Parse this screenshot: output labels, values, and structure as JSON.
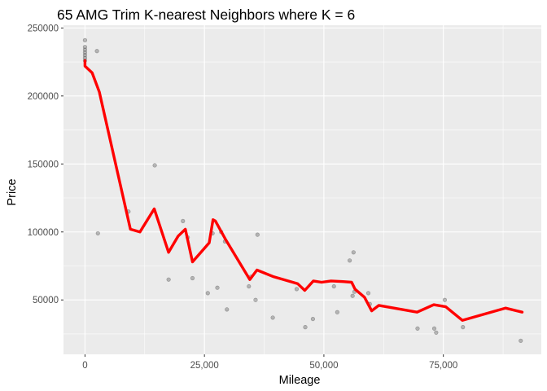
{
  "chart_data": {
    "type": "scatter",
    "title": "65 AMG Trim K-nearest Neighbors where K = 6",
    "xlabel": "Mileage",
    "ylabel": "Price",
    "xlim": [
      -4500,
      95500
    ],
    "ylim": [
      10000,
      252000
    ],
    "x_ticks": [
      0,
      25000,
      50000,
      75000
    ],
    "x_tick_labels": [
      "0",
      "25,000",
      "50,000",
      "75,000"
    ],
    "y_ticks": [
      50000,
      100000,
      150000,
      200000,
      250000
    ],
    "y_tick_labels": [
      "50000",
      "100000",
      "150000",
      "200000",
      "250000"
    ],
    "grid": true,
    "panel_background": "#ebebeb",
    "grid_color": "#ffffff",
    "point_color": "#333333",
    "point_opacity": 0.3,
    "fit_color": "#ff0000",
    "points": [
      [
        0,
        241000
      ],
      [
        0,
        236000
      ],
      [
        0,
        234000
      ],
      [
        0,
        232000
      ],
      [
        0,
        230000
      ],
      [
        0,
        228000
      ],
      [
        0,
        226000
      ],
      [
        2500,
        233000
      ],
      [
        2700,
        99000
      ],
      [
        9100,
        115000
      ],
      [
        14600,
        149000
      ],
      [
        17500,
        65000
      ],
      [
        20500,
        108000
      ],
      [
        21500,
        96000
      ],
      [
        22500,
        66000
      ],
      [
        25700,
        55000
      ],
      [
        26700,
        99000
      ],
      [
        27700,
        59000
      ],
      [
        28500,
        100000
      ],
      [
        29300,
        93000
      ],
      [
        29700,
        43000
      ],
      [
        34300,
        60000
      ],
      [
        34700,
        67000
      ],
      [
        35700,
        50000
      ],
      [
        36100,
        98000
      ],
      [
        39300,
        37000
      ],
      [
        44300,
        58000
      ],
      [
        46100,
        30000
      ],
      [
        47700,
        36000
      ],
      [
        52100,
        60000
      ],
      [
        52800,
        41000
      ],
      [
        55400,
        79000
      ],
      [
        56000,
        53000
      ],
      [
        56200,
        85000
      ],
      [
        56400,
        56000
      ],
      [
        59300,
        55000
      ],
      [
        59600,
        47000
      ],
      [
        69600,
        29000
      ],
      [
        73100,
        29000
      ],
      [
        73500,
        26000
      ],
      [
        75300,
        50000
      ],
      [
        79100,
        30000
      ],
      [
        91200,
        20000
      ]
    ],
    "fit_line": [
      [
        0,
        226000
      ],
      [
        0,
        222000
      ],
      [
        1500,
        217000
      ],
      [
        3000,
        203000
      ],
      [
        9500,
        102000
      ],
      [
        11500,
        100000
      ],
      [
        14500,
        117000
      ],
      [
        17500,
        85000
      ],
      [
        19500,
        97000
      ],
      [
        21000,
        102000
      ],
      [
        22500,
        78000
      ],
      [
        26000,
        92000
      ],
      [
        26800,
        109000
      ],
      [
        27300,
        108000
      ],
      [
        29500,
        94000
      ],
      [
        34500,
        65000
      ],
      [
        36000,
        72000
      ],
      [
        39500,
        67000
      ],
      [
        44500,
        62000
      ],
      [
        46000,
        57000
      ],
      [
        47800,
        64000
      ],
      [
        49500,
        63000
      ],
      [
        51500,
        64000
      ],
      [
        54000,
        63500
      ],
      [
        55800,
        63000
      ],
      [
        56500,
        58000
      ],
      [
        58500,
        52000
      ],
      [
        60000,
        42000
      ],
      [
        61500,
        46000
      ],
      [
        69500,
        41000
      ],
      [
        73000,
        46500
      ],
      [
        75500,
        45000
      ],
      [
        79000,
        35000
      ],
      [
        88000,
        44000
      ],
      [
        91500,
        41000
      ]
    ]
  }
}
